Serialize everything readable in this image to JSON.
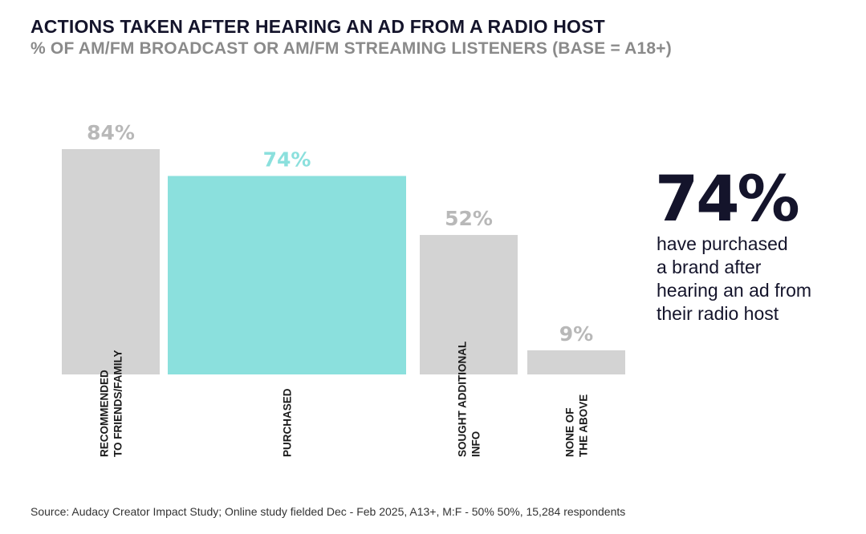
{
  "title": "ACTIONS TAKEN AFTER HEARING AN AD FROM A RADIO HOST",
  "subtitle": "% OF AM/FM BROADCAST OR AM/FM STREAMING LISTENERS (BASE = A18+)",
  "chart_data": {
    "type": "bar",
    "categories": [
      [
        "RECOMMENDED",
        "TO FRIENDS/FAMILY"
      ],
      [
        "PURCHASED"
      ],
      [
        "SOUGHT ADDITIONAL",
        "INFO"
      ],
      [
        "NONE OF",
        "THE ABOVE"
      ]
    ],
    "values": [
      84,
      74,
      52,
      9
    ],
    "value_labels": [
      "84%",
      "74%",
      "52%",
      "9%"
    ],
    "highlight_index": 1,
    "ylim": [
      0,
      84
    ],
    "grid": false,
    "colors": {
      "default_bar": "#d3d3d3",
      "highlight_bar": "#8be0dd",
      "default_label": "#b8b8b8",
      "highlight_label": "#8be0dd"
    }
  },
  "callout": {
    "number": "74%",
    "lines": [
      "have purchased",
      "a brand after",
      "hearing an ad from",
      "their radio host"
    ]
  },
  "source": "Source: Audacy Creator Impact Study; Online study fielded Dec - Feb 2025, A13+, M:F - 50% 50%, 15,284 respondents"
}
